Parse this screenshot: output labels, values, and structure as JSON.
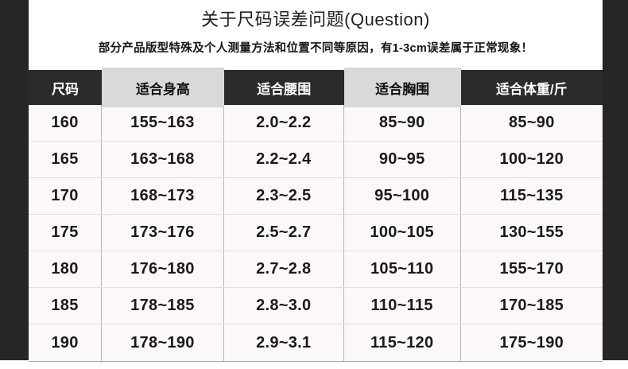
{
  "page": {
    "title": "关于尺码误差问题(Question)",
    "subtitle": "部分产品版型特殊及个人测量方法和位置不同等原因，有1-3cm误差属于正常现象！"
  },
  "size_table": {
    "headers": [
      "尺码",
      "适合身高",
      "适合腰围",
      "适合胸围",
      "适合体重/斤"
    ],
    "rows": [
      [
        "160",
        "155~163",
        "2.0~2.2",
        "85~90",
        "85~90"
      ],
      [
        "165",
        "163~168",
        "2.2~2.4",
        "90~95",
        "100~120"
      ],
      [
        "170",
        "168~173",
        "2.3~2.5",
        "95~100",
        "115~135"
      ],
      [
        "175",
        "173~176",
        "2.5~2.7",
        "100~105",
        "130~155"
      ],
      [
        "180",
        "176~180",
        "2.7~2.8",
        "105~110",
        "155~170"
      ],
      [
        "185",
        "178~185",
        "2.8~3.0",
        "110~115",
        "170~185"
      ],
      [
        "190",
        "178~190",
        "2.9~3.1",
        "115~120",
        "175~190"
      ]
    ]
  },
  "colors": {
    "side_panel": "#262626",
    "header_dark_bg": "#2b2b2b",
    "header_dark_text": "#ffffff",
    "header_light_bg": "#d9d9d9",
    "header_light_text": "#111111",
    "row_bg": "#fdf8f8",
    "body_text": "#1a1a1a"
  }
}
